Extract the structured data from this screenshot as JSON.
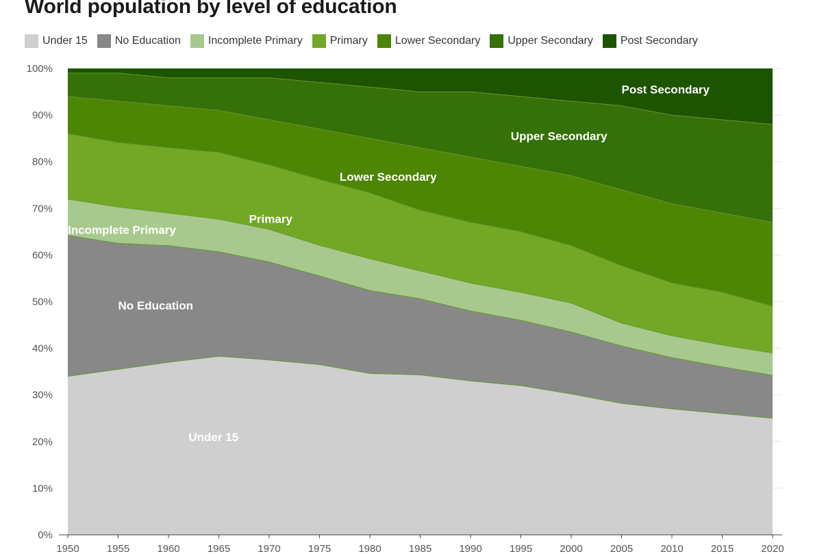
{
  "chart_data": {
    "type": "area",
    "stacked": true,
    "normalized": true,
    "title": "World population by level of education",
    "x": [
      1950,
      1955,
      1960,
      1965,
      1970,
      1975,
      1980,
      1985,
      1990,
      1995,
      2000,
      2005,
      2010,
      2015,
      2020
    ],
    "ylim": [
      0,
      100
    ],
    "yticks": [
      "0%",
      "10%",
      "20%",
      "30%",
      "40%",
      "50%",
      "60%",
      "70%",
      "80%",
      "90%",
      "100%"
    ],
    "grid": true,
    "legend_position": "top",
    "series": [
      {
        "name": "Under 15",
        "color": "#cfcfcf",
        "values": [
          34,
          35.5,
          37,
          38.3,
          37.5,
          36.5,
          34.6,
          34.3,
          33,
          32,
          30.2,
          28.2,
          27,
          26,
          25
        ]
      },
      {
        "name": "No Education",
        "color": "#888888",
        "values": [
          30.2,
          27,
          25,
          22.4,
          21,
          19,
          17.8,
          16.3,
          15,
          14,
          13.3,
          12.3,
          11,
          10,
          9.2
        ]
      },
      {
        "name": "Incomplete Primary",
        "color": "#a8c98d",
        "values": [
          7.8,
          7.8,
          7,
          7,
          7,
          6.6,
          6.8,
          6,
          6,
          6,
          6.2,
          4.9,
          4.7,
          4.7,
          4.8
        ]
      },
      {
        "name": "Primary",
        "color": "#73a826",
        "values": [
          14,
          13.8,
          14,
          14.3,
          13.8,
          14.1,
          14.1,
          13,
          13,
          13,
          12.3,
          12.3,
          11.3,
          11.3,
          10
        ]
      },
      {
        "name": "Lower Secondary",
        "color": "#4d8505",
        "values": [
          8,
          8.9,
          9,
          9,
          9.7,
          10.8,
          11.7,
          13.4,
          14,
          14,
          15,
          16.3,
          17,
          17,
          18
        ]
      },
      {
        "name": "Upper Secondary",
        "color": "#367008",
        "values": [
          5,
          6,
          6,
          7,
          9,
          10,
          11,
          12,
          14,
          15,
          16,
          18,
          19,
          20,
          21
        ]
      },
      {
        "name": "Post Secondary",
        "color": "#1d5400",
        "values": [
          1,
          1,
          2,
          2,
          2,
          3,
          4,
          5,
          5,
          6,
          7,
          8,
          10,
          11,
          12
        ]
      }
    ],
    "annotations": [
      {
        "text": "Under 15",
        "x": 1962,
        "y": 21
      },
      {
        "text": "No Education",
        "x": 1955,
        "y": 49.2
      },
      {
        "text": "Incomplete Primary",
        "x": 1950,
        "y": 65.4
      },
      {
        "text": "Primary",
        "x": 1968,
        "y": 67.8
      },
      {
        "text": "Lower Secondary",
        "x": 1977,
        "y": 76.8
      },
      {
        "text": "Upper Secondary",
        "x": 1994,
        "y": 85.5
      },
      {
        "text": "Post Secondary",
        "x": 2005,
        "y": 95.5
      }
    ]
  }
}
